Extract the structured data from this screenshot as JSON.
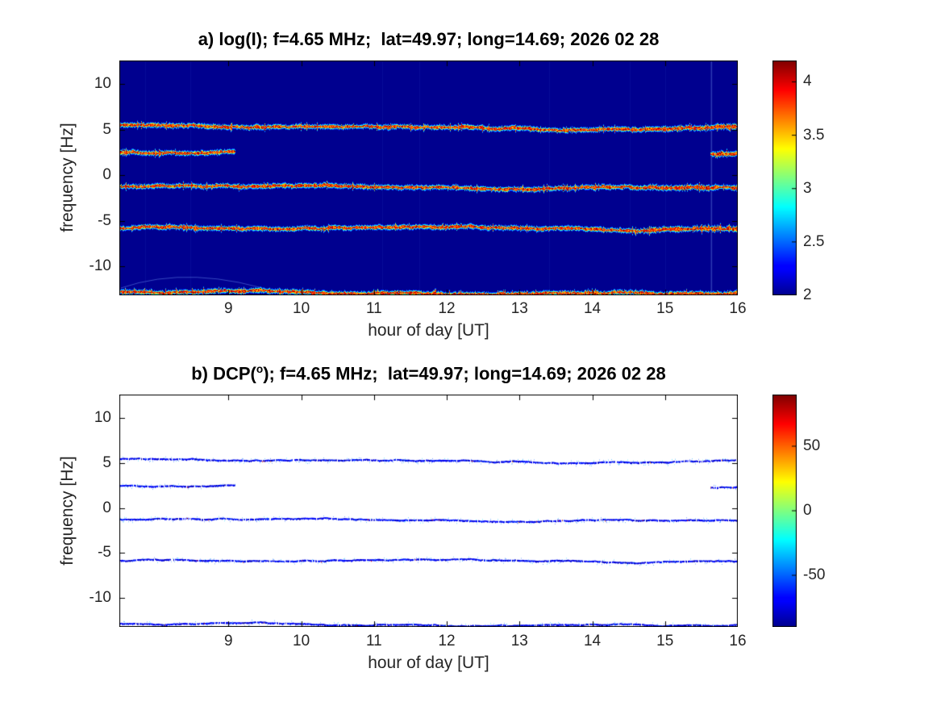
{
  "figure": {
    "background": "#ffffff"
  },
  "chart_data": [
    {
      "id": "panel-a",
      "type": "heatmap",
      "title": "a) log(I); f=4.65 MHz;  lat=49.97; long=14.69; 2026 02 28",
      "xlabel": "hour of day [UT]",
      "ylabel": "frequency [Hz]",
      "xlim": [
        7.5,
        16
      ],
      "ylim": [
        -13.2,
        12.6
      ],
      "xticks": [
        9,
        10,
        11,
        12,
        13,
        14,
        15,
        16
      ],
      "yticks": [
        10,
        5,
        0,
        -5,
        -10
      ],
      "colormap": "jet",
      "background_value": 2,
      "background_color": "#00008f",
      "colorbar": {
        "range": [
          2,
          4.2
        ],
        "ticks": [
          4,
          3.5,
          3,
          2.5,
          2
        ]
      },
      "spectral_lines": [
        {
          "freq": 5.3,
          "x_start": 7.5,
          "x_end": 16,
          "style": "hot"
        },
        {
          "freq": 2.35,
          "x_start": 7.5,
          "x_end": 9.1,
          "style": "hot"
        },
        {
          "freq": 2.1,
          "x_start": 15.62,
          "x_end": 16,
          "style": "hot"
        },
        {
          "freq": -1.3,
          "x_start": 7.5,
          "x_end": 16,
          "style": "hot"
        },
        {
          "freq": -5.9,
          "x_start": 7.5,
          "x_end": 16,
          "style": "hot"
        },
        {
          "freq": -12.9,
          "x_start": 7.5,
          "x_end": 16,
          "style": "hot"
        }
      ],
      "artifacts": [
        {
          "type": "vertical-streak",
          "x": 15.63
        },
        {
          "type": "faint-arc",
          "x_start": 7.52,
          "freq_start": -12.4,
          "x_ctrl": 8.5,
          "freq_ctrl": -9.7,
          "x_end": 9.75,
          "freq_end": -13.1
        }
      ]
    },
    {
      "id": "panel-b",
      "type": "heatmap",
      "title": "b) DCP(°); f=4.65 MHz;  lat=49.97; long=14.69; 2026 02 28",
      "title_parts": {
        "pre": "b) DCP(",
        "sup": "o",
        "post": "); f=4.65 MHz;  lat=49.97; long=14.69; 2026 02 28"
      },
      "xlabel": "hour of day [UT]",
      "ylabel": "frequency [Hz]",
      "xlim": [
        7.5,
        16
      ],
      "ylim": [
        -13.2,
        12.6
      ],
      "xticks": [
        9,
        10,
        11,
        12,
        13,
        14,
        15,
        16
      ],
      "yticks": [
        10,
        5,
        0,
        -5,
        -10
      ],
      "colormap": "jet",
      "background_color": "#ffffff",
      "colorbar": {
        "range": [
          -90,
          90
        ],
        "ticks": [
          50,
          0,
          -50
        ]
      },
      "spectral_lines": [
        {
          "freq": 5.3,
          "x_start": 7.5,
          "x_end": 16,
          "style": "thin-blue"
        },
        {
          "freq": 2.35,
          "x_start": 7.5,
          "x_end": 9.1,
          "style": "thin-blue"
        },
        {
          "freq": 2.1,
          "x_start": 15.62,
          "x_end": 16,
          "style": "thin-blue"
        },
        {
          "freq": -1.3,
          "x_start": 7.5,
          "x_end": 16,
          "style": "thin-blue"
        },
        {
          "freq": -5.9,
          "x_start": 7.5,
          "x_end": 16,
          "style": "thin-blue"
        },
        {
          "freq": -12.9,
          "x_start": 7.5,
          "x_end": 16,
          "style": "thin-blue"
        }
      ],
      "artifacts": []
    }
  ]
}
